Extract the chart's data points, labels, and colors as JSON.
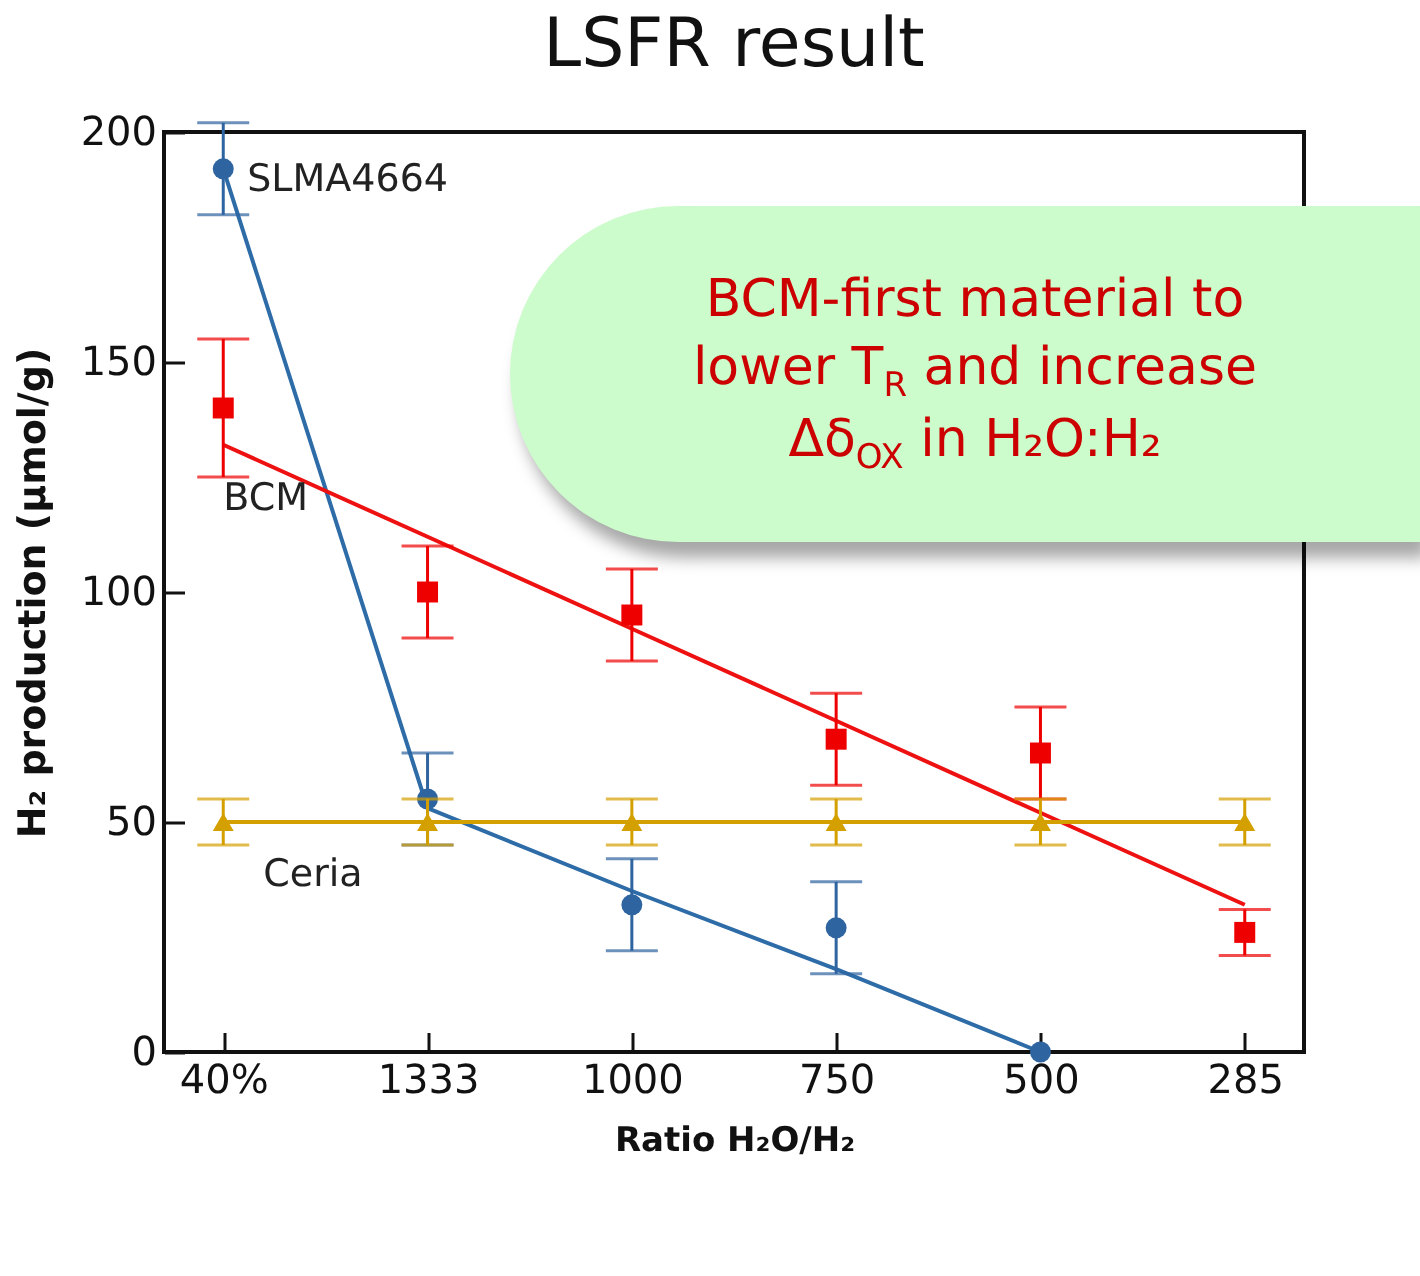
{
  "chart_data": {
    "type": "scatter",
    "title": "LSFR result",
    "xlabel": "Ratio H₂O/H₂",
    "ylabel": "H₂ production (µmol/g)",
    "categories": [
      "40%",
      "1333",
      "1000",
      "750",
      "500",
      "285"
    ],
    "ylim": [
      0,
      200
    ],
    "yticks": [
      0,
      50,
      100,
      150,
      200
    ],
    "grid": false,
    "annotations": [
      "BCM-first material to lower T$_{R}$ and increase Δδ$_{OX}$ in H₂O:H₂"
    ],
    "series": [
      {
        "type": "line",
        "color": "#2e6ca8",
        "values": [
          192,
          53,
          35,
          18,
          0,
          null
        ]
      },
      {
        "type": "line",
        "color": "#ee1111",
        "values": [
          132,
          112,
          92,
          72,
          52,
          32
        ]
      },
      {
        "type": "line",
        "color": "#d4a000",
        "values": [
          50,
          50,
          50,
          50,
          50,
          50
        ]
      },
      {
        "name": "SLMA4664",
        "color": "#2e64a0",
        "marker": "circle",
        "values": [
          192,
          55,
          32,
          27,
          0,
          null
        ],
        "errors": [
          10,
          10,
          10,
          10,
          null,
          null
        ]
      },
      {
        "name": "BCM",
        "color": "#ee0000",
        "marker": "square",
        "values": [
          140,
          100,
          95,
          68,
          65,
          26
        ],
        "errors": [
          15,
          10,
          10,
          10,
          10,
          5
        ]
      },
      {
        "name": "Ceria",
        "color": "#d4a000",
        "marker": "triangle",
        "values": [
          50,
          50,
          50,
          50,
          50,
          50
        ],
        "errors": [
          5,
          5,
          5,
          5,
          5,
          5
        ]
      }
    ]
  }
}
